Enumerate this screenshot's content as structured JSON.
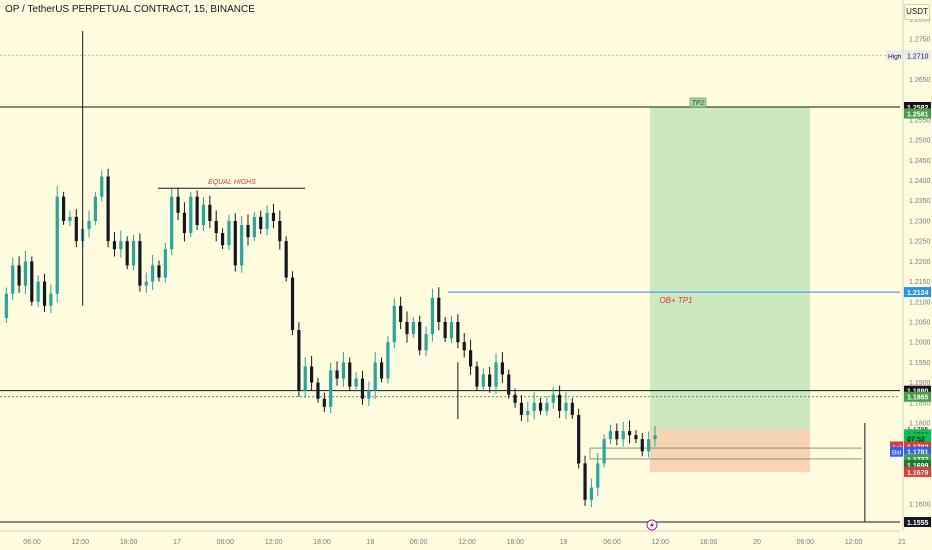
{
  "header": {
    "title": "OP / TetherUS PERPETUAL CONTRACT, 15, BINANCE",
    "currency": "USDT"
  },
  "colors": {
    "background": "#fffbdf",
    "up_candle": "#26a69a",
    "down_candle": "#131722",
    "target_zone": "#c8e6bc",
    "stop_zone": "#f7cfb0",
    "annotation_red": "#e53935",
    "tp1_line": "#2196f3",
    "dotted_line": "#2e7d32"
  },
  "chart_data": {
    "type": "candlestick",
    "price_axis": {
      "range": [
        1.153,
        1.283
      ],
      "ticks": [
        "1.2800",
        "1.2750",
        "1.2650",
        "1.2550",
        "1.2500",
        "1.2450",
        "1.2400",
        "1.2350",
        "1.2300",
        "1.2250",
        "1.2200",
        "1.2150",
        "1.2100",
        "1.2050",
        "1.2000",
        "1.1950",
        "1.1900",
        "1.1850",
        "1.1800",
        "1.1600"
      ]
    },
    "time_axis": {
      "ticks": [
        "06:00",
        "12:00",
        "18:00",
        "17",
        "06:00",
        "12:00",
        "18:00",
        "18",
        "06:00",
        "12:00",
        "18:00",
        "19",
        "06:00",
        "12:00",
        "18:00",
        "20",
        "06:00",
        "12:00",
        "21"
      ]
    },
    "close_path": [
      1.206,
      1.212,
      1.219,
      1.214,
      1.22,
      1.21,
      1.215,
      1.209,
      1.212,
      1.236,
      1.23,
      1.231,
      1.225,
      1.228,
      1.23,
      1.236,
      1.241,
      1.225,
      1.223,
      1.225,
      1.219,
      1.225,
      1.214,
      1.215,
      1.219,
      1.216,
      1.223,
      1.236,
      1.232,
      1.227,
      1.236,
      1.229,
      1.234,
      1.23,
      1.227,
      1.224,
      1.23,
      1.219,
      1.229,
      1.226,
      1.231,
      1.228,
      1.232,
      1.23,
      1.225,
      1.216,
      1.203,
      1.188,
      1.194,
      1.19,
      1.186,
      1.184,
      1.193,
      1.191,
      1.195,
      1.189,
      1.191,
      1.186,
      1.188,
      1.195,
      1.191,
      1.2,
      1.209,
      1.205,
      1.202,
      1.205,
      1.198,
      1.202,
      1.211,
      1.205,
      1.201,
      1.205,
      1.2,
      1.198,
      1.194,
      1.189,
      1.192,
      1.189,
      1.195,
      1.192,
      1.187,
      1.185,
      1.182,
      1.183,
      1.185,
      1.183,
      1.185,
      1.187,
      1.183,
      1.185,
      1.182,
      1.17,
      1.161,
      1.164,
      1.17,
      1.176,
      1.178,
      1.176,
      1.178,
      1.177,
      1.176,
      1.173,
      1.176,
      1.177
    ],
    "candle_x_range": [
      0,
      655
    ],
    "wicks": [
      {
        "label": "spike high",
        "time_index": 13,
        "high": 1.277,
        "low": 1.209
      },
      {
        "label": "low wick",
        "time_index": 72,
        "high": 1.195,
        "low": 1.181
      },
      {
        "label": "swing low",
        "time_index": 136,
        "high": 1.18,
        "low": 1.1555
      }
    ],
    "levels": [
      {
        "name": "high_level",
        "price": 1.271,
        "label": "High",
        "value": "1.2710",
        "style": "dotted",
        "color": "#b0ae98"
      },
      {
        "name": "tp2_line",
        "price": 1.2582,
        "value": "1.2582",
        "style": "solid",
        "color": "#131722"
      },
      {
        "name": "tp1_line",
        "price": 1.2124,
        "value": "1.2124",
        "style": "solid",
        "color": "#2196f3"
      },
      {
        "name": "level_1880",
        "price": 1.188,
        "value": "1.1880",
        "style": "solid",
        "color": "#131722"
      },
      {
        "name": "level_1865",
        "price": 1.1865,
        "value": "1.1865",
        "style": "dotted",
        "color": "#2e7d32"
      },
      {
        "name": "low_line",
        "price": 1.1555,
        "value": "1.1555",
        "style": "solid",
        "color": "#131722"
      }
    ],
    "price_labels": [
      {
        "value": "1.2581",
        "price": 1.2566,
        "bg": "#43a047",
        "fg": "#ffffff"
      },
      {
        "value": "1.1785",
        "price": 1.1785,
        "bg": "none",
        "fg": "#131722"
      },
      {
        "value": "1.1783",
        "price": 1.1772,
        "bg": "#00c853",
        "fg": "#131722"
      },
      {
        "value": "07:52",
        "price": 1.1762,
        "bg": "#00c853",
        "fg": "#131722"
      },
      {
        "value": "1.1782",
        "price": 1.1742,
        "bg": "#e53935",
        "fg": "#ffffff",
        "tag": "Ask",
        "tag_bg": "#e53935"
      },
      {
        "value": "1.1781",
        "price": 1.1729,
        "bg": "#2962ff",
        "fg": "#ffffff",
        "tag": "Bid",
        "tag_bg": "#2962ff"
      },
      {
        "value": "1.1727",
        "price": 1.1711,
        "bg": "#43a047",
        "fg": "#ffffff"
      },
      {
        "value": "1.1699",
        "price": 1.1696,
        "bg": "#1b7a3a",
        "fg": "#ffffff"
      },
      {
        "value": "1.1679",
        "price": 1.1679,
        "bg": "#e53935",
        "fg": "#ffffff"
      }
    ],
    "annotations": {
      "equal_highs": {
        "text": "EQUAL HIGHS",
        "price": 1.2381
      },
      "tp1_text": {
        "text": "OB+ TP1",
        "price": 1.2105
      },
      "tp2_text": {
        "text": "TP2",
        "price": 1.2592
      }
    },
    "position_tool": {
      "target_top": 1.2582,
      "entry": 1.1785,
      "stop": 1.1679,
      "entry_marker": 1.1727
    }
  }
}
